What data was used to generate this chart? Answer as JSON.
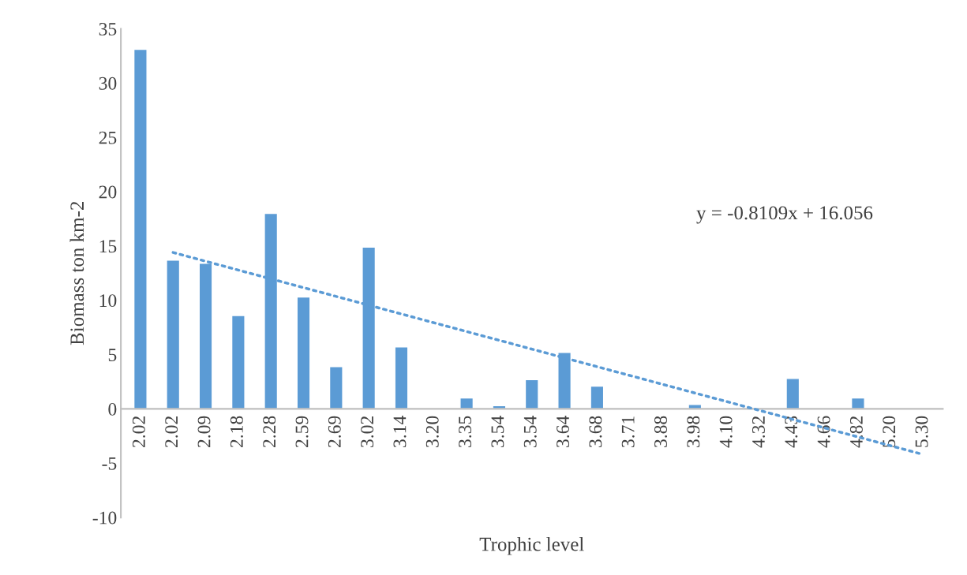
{
  "chart_data": {
    "type": "bar",
    "xlabel": "Trophic level",
    "ylabel": "Biomass ton km-2",
    "categories": [
      "2.02",
      "2.02",
      "2.09",
      "2.18",
      "2.28",
      "2.59",
      "2.69",
      "3.02",
      "3.14",
      "3.20",
      "3.35",
      "3.54",
      "3.54",
      "3.64",
      "3.68",
      "3.71",
      "3.88",
      "3.98",
      "4.10",
      "4.32",
      "4.43",
      "4.66",
      "4.82",
      "5.20",
      "5.30"
    ],
    "series": [
      {
        "color": "#5b9bd5",
        "values": [
          33.1,
          13.7,
          13.4,
          8.6,
          18.0,
          10.3,
          3.9,
          14.9,
          5.7,
          null,
          1.0,
          0.3,
          2.7,
          5.2,
          2.1,
          null,
          null,
          0.4,
          null,
          null,
          2.8,
          null,
          1.0,
          null,
          null
        ]
      },
      {
        "type": "line",
        "color": "#5b9bd5",
        "line_style": "dotted",
        "values": [
          null,
          14.4,
          null,
          null,
          null,
          null,
          null,
          null,
          null,
          null,
          null,
          null,
          null,
          null,
          null,
          null,
          null,
          null,
          null,
          null,
          null,
          null,
          null,
          null,
          -4.2
        ]
      }
    ],
    "annotations": [
      "y = -0.8109x + 16.056"
    ],
    "ylim": [
      -10,
      35
    ],
    "yticks": [
      -10,
      -5,
      0,
      5,
      10,
      15,
      20,
      25,
      30,
      35
    ],
    "grid": false
  }
}
